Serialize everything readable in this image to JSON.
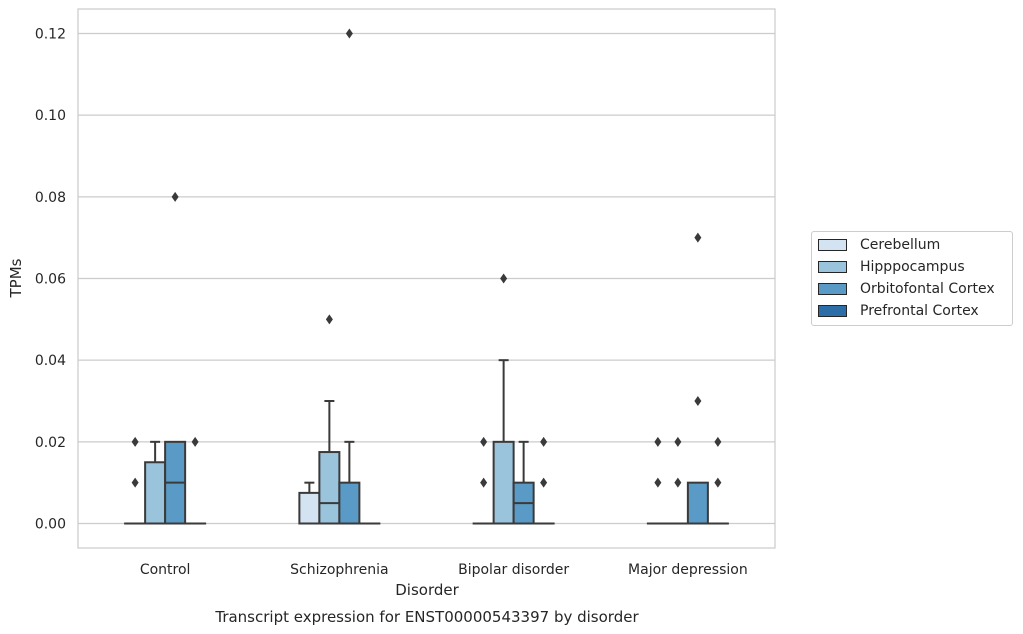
{
  "chart_data": {
    "type": "box",
    "title": "",
    "caption": "Transcript expression for ENST00000543397 by disorder",
    "xlabel": "Disorder",
    "ylabel": "TPMs",
    "ylim": [
      -0.006,
      0.126
    ],
    "yticks": [
      0.0,
      0.02,
      0.04,
      0.06,
      0.08,
      0.1,
      0.12
    ],
    "ytick_labels": [
      "0.00",
      "0.02",
      "0.04",
      "0.06",
      "0.08",
      "0.10",
      "0.12"
    ],
    "grid": "horizontal",
    "legend_placement": "right-outside",
    "categories": [
      "Control",
      "Schizophrenia",
      "Bipolar disorder",
      "Major depression"
    ],
    "series": [
      {
        "name": "Cerebellum",
        "color": "#d4e3f1",
        "boxes": [
          {
            "q1": 0,
            "median": 0,
            "q3": 0,
            "whisker_low": 0,
            "whisker_high": 0,
            "fliers": [
              0.01,
              0.02
            ]
          },
          {
            "q1": 0,
            "median": 0,
            "q3": 0.0075,
            "whisker_low": 0,
            "whisker_high": 0.01,
            "fliers": []
          },
          {
            "q1": 0,
            "median": 0,
            "q3": 0,
            "whisker_low": 0,
            "whisker_high": 0,
            "fliers": [
              0.01,
              0.02
            ]
          },
          {
            "q1": 0,
            "median": 0,
            "q3": 0,
            "whisker_low": 0,
            "whisker_high": 0,
            "fliers": [
              0.01,
              0.02
            ]
          }
        ]
      },
      {
        "name": "Hipppocampus",
        "color": "#9ac3dc",
        "boxes": [
          {
            "q1": 0,
            "median": 0,
            "q3": 0.015,
            "whisker_low": 0,
            "whisker_high": 0.02,
            "fliers": []
          },
          {
            "q1": 0,
            "median": 0.005,
            "q3": 0.0175,
            "whisker_low": 0,
            "whisker_high": 0.03,
            "fliers": [
              0.05
            ]
          },
          {
            "q1": 0,
            "median": 0,
            "q3": 0.02,
            "whisker_low": 0,
            "whisker_high": 0.04,
            "fliers": [
              0.06
            ]
          },
          {
            "q1": 0,
            "median": 0,
            "q3": 0,
            "whisker_low": 0,
            "whisker_high": 0,
            "fliers": [
              0.01,
              0.02
            ]
          }
        ]
      },
      {
        "name": "Orbitofontal Cortex",
        "color": "#5a9ac6",
        "boxes": [
          {
            "q1": 0,
            "median": 0.01,
            "q3": 0.02,
            "whisker_low": 0,
            "whisker_high": 0.02,
            "fliers": [
              0.08
            ]
          },
          {
            "q1": 0,
            "median": 0,
            "q3": 0.01,
            "whisker_low": 0,
            "whisker_high": 0.02,
            "fliers": [
              0.12
            ]
          },
          {
            "q1": 0,
            "median": 0.005,
            "q3": 0.01,
            "whisker_low": 0,
            "whisker_high": 0.02,
            "fliers": []
          },
          {
            "q1": 0,
            "median": 0,
            "q3": 0.01,
            "whisker_low": 0,
            "whisker_high": 0.01,
            "fliers": [
              0.03,
              0.07
            ]
          }
        ]
      },
      {
        "name": "Prefrontal Cortex",
        "color": "#2c6ea8",
        "boxes": [
          {
            "q1": 0,
            "median": 0,
            "q3": 0,
            "whisker_low": 0,
            "whisker_high": 0,
            "fliers": [
              0.02
            ]
          },
          {
            "q1": 0,
            "median": 0,
            "q3": 0,
            "whisker_low": 0,
            "whisker_high": 0,
            "fliers": []
          },
          {
            "q1": 0,
            "median": 0,
            "q3": 0,
            "whisker_low": 0,
            "whisker_high": 0,
            "fliers": [
              0.01,
              0.02
            ]
          },
          {
            "q1": 0,
            "median": 0,
            "q3": 0,
            "whisker_low": 0,
            "whisker_high": 0,
            "fliers": [
              0.01,
              0.02
            ]
          }
        ]
      }
    ]
  }
}
